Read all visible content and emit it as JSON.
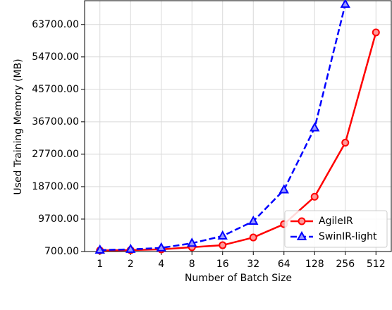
{
  "chart_data": {
    "type": "line",
    "xlabel": "Number of Batch Size",
    "ylabel": "Used Training Memory (MB)",
    "categories": [
      "1",
      "2",
      "4",
      "8",
      "16",
      "32",
      "64",
      "128",
      "256",
      "512"
    ],
    "series": [
      {
        "name": "AgileIR",
        "color": "#ff0000",
        "marker": "circle",
        "linestyle": "solid",
        "values": [
          1000,
          1100,
          1300,
          1900,
          2450,
          4600,
          8300,
          15900,
          30900,
          61500
        ]
      },
      {
        "name": "SwinIR-light",
        "color": "#0000ff",
        "marker": "triangle",
        "linestyle": "dashed",
        "values": [
          1100,
          1300,
          1700,
          3000,
          5000,
          9100,
          17800,
          35000,
          69300,
          null
        ]
      }
    ],
    "ylim": [
      700,
      70300
    ],
    "yticks": [
      {
        "value": 700,
        "label": "700.00"
      },
      {
        "value": 9700,
        "label": "9700.00"
      },
      {
        "value": 18700,
        "label": "18700.00"
      },
      {
        "value": 27700,
        "label": "27700.00"
      },
      {
        "value": 36700,
        "label": "36700.00"
      },
      {
        "value": 45700,
        "label": "45700.00"
      },
      {
        "value": 54700,
        "label": "54700.00"
      },
      {
        "value": 63700,
        "label": "63700.00"
      }
    ],
    "grid": true,
    "legend": "lower right"
  }
}
